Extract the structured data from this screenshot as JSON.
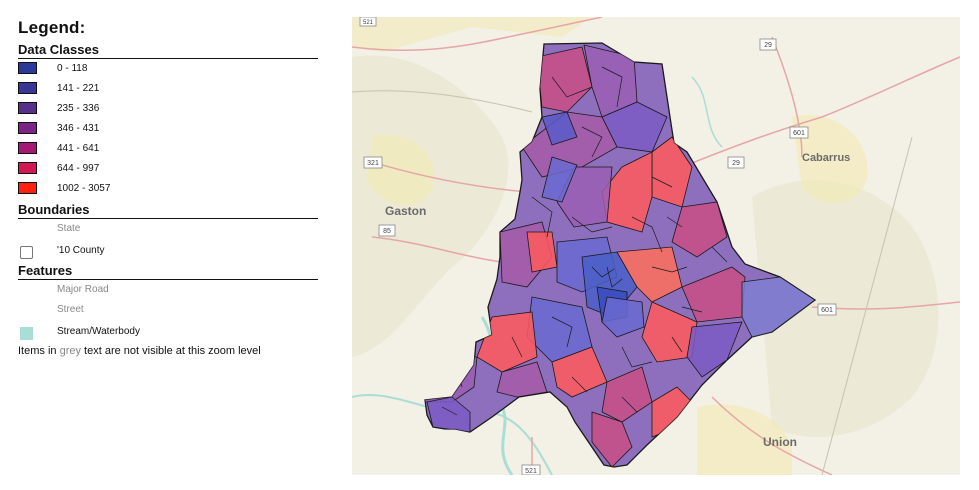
{
  "legend": {
    "title": "Legend:",
    "data_classes_title": "Data Classes",
    "data_classes": [
      {
        "label": "0 - 118",
        "color": "#2b3a9a"
      },
      {
        "label": "141 - 221",
        "color": "#393593"
      },
      {
        "label": "235 - 336",
        "color": "#57308a"
      },
      {
        "label": "346 - 431",
        "color": "#7a2585"
      },
      {
        "label": "441 - 641",
        "color": "#a41a72"
      },
      {
        "label": "644 - 997",
        "color": "#d21752"
      },
      {
        "label": "1002 - 3057",
        "color": "#ff2010"
      }
    ],
    "boundaries_title": "Boundaries",
    "boundaries": [
      {
        "label": "State",
        "visible": false
      },
      {
        "label": "'10 County",
        "visible": true
      }
    ],
    "features_title": "Features",
    "features": [
      {
        "label": "Major Road",
        "visible": false
      },
      {
        "label": "Street",
        "visible": false
      },
      {
        "label": "Stream/Waterbody",
        "visible": true,
        "color": "#a9ded6"
      }
    ],
    "note_before": "Items in ",
    "note_grey": "grey",
    "note_after": " text are not visible at this zoom level"
  },
  "map": {
    "places": {
      "cabarrus": "Cabarrus",
      "gaston": "Gaston",
      "union": "Union"
    },
    "shields": {
      "s1": "521",
      "s2": "29",
      "s3": "601",
      "s4": "85",
      "s5": "601",
      "s6": "29",
      "s7": "321",
      "s8": "521"
    }
  }
}
